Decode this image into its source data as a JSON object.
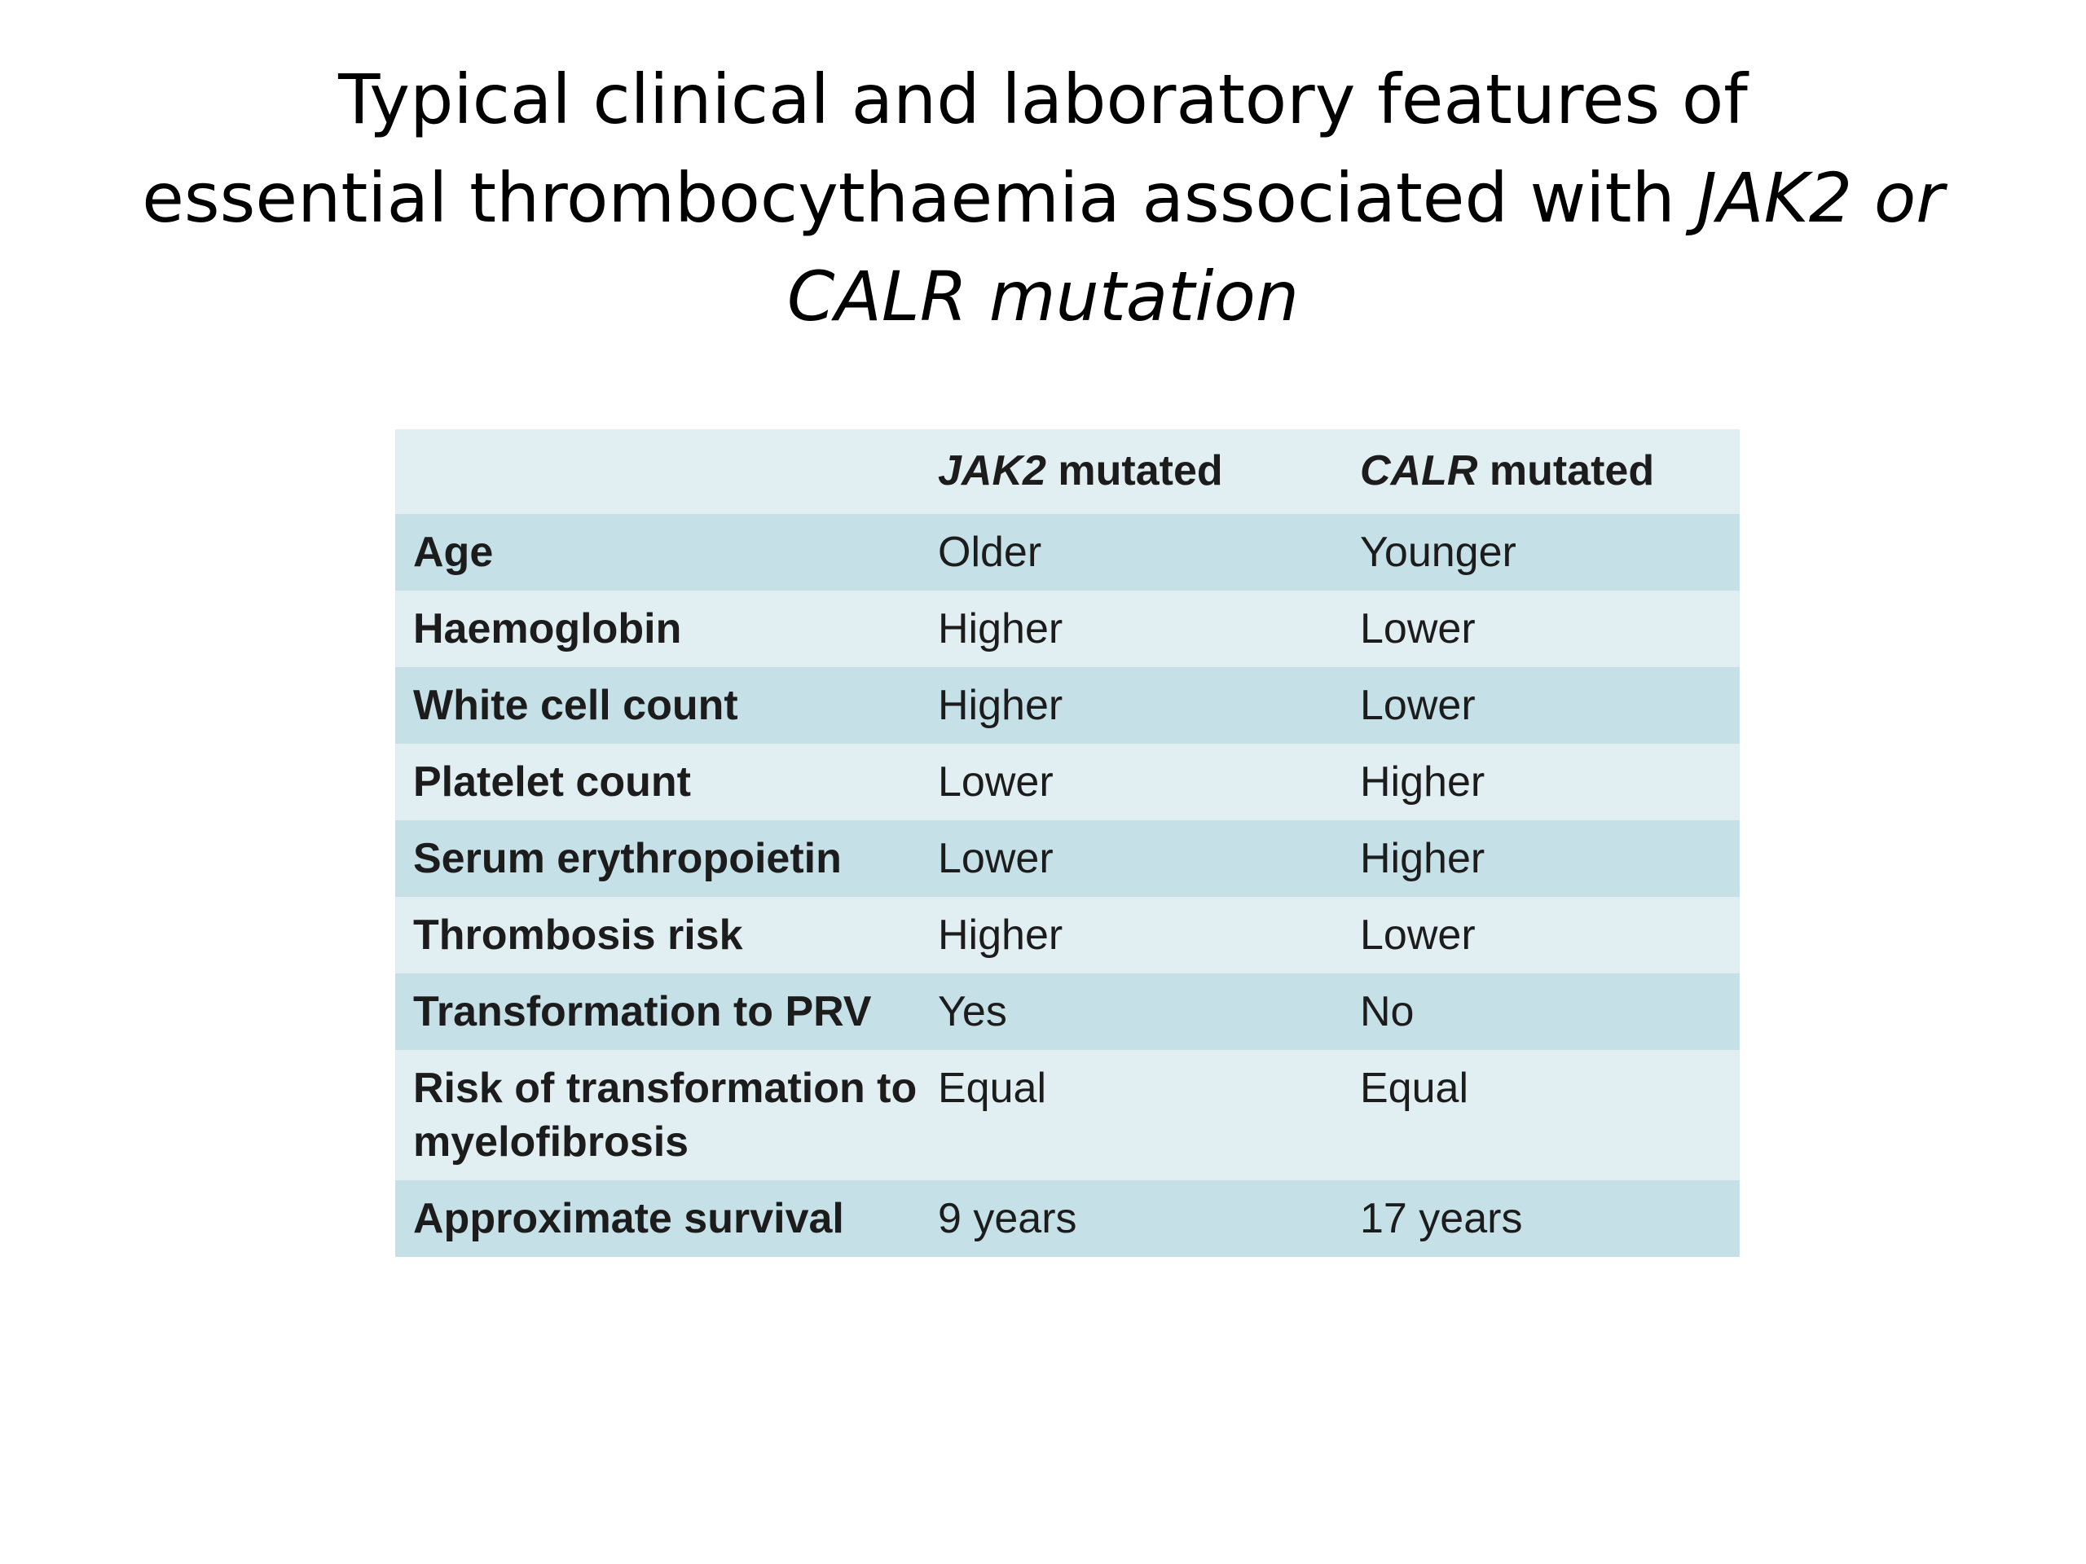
{
  "title": {
    "line1": "Typical clinical and laboratory features of",
    "line2_plain": "essential thrombocythaemia associated with ",
    "line2_italic": "JAK2 or",
    "line3_italic": "CALR mutation"
  },
  "table": {
    "headers": {
      "col1": "",
      "col2_gene": "JAK2",
      "col2_rest": " mutated",
      "col3_gene": "CALR",
      "col3_rest": " mutated"
    },
    "rows": [
      {
        "feature": "Age",
        "jak2": "Older",
        "calr": "Younger"
      },
      {
        "feature": "Haemoglobin",
        "jak2": "Higher",
        "calr": "Lower"
      },
      {
        "feature": "White cell count",
        "jak2": "Higher",
        "calr": "Lower"
      },
      {
        "feature": "Platelet count",
        "jak2": "Lower",
        "calr": "Higher"
      },
      {
        "feature": "Serum erythropoietin",
        "jak2": "Lower",
        "calr": "Higher"
      },
      {
        "feature": "Thrombosis risk",
        "jak2": "Higher",
        "calr": "Lower"
      },
      {
        "feature": "Transformation to PRV",
        "jak2": "Yes",
        "calr": "No"
      },
      {
        "feature": "Risk of transformation to myelofibrosis",
        "jak2": "Equal",
        "calr": "Equal"
      },
      {
        "feature": "Approximate survival",
        "jak2": "9 years",
        "calr": "17 years"
      }
    ]
  },
  "colors": {
    "row_light": "#e2eff2",
    "row_dark": "#c5e0e6",
    "text": "#1c1c1c"
  }
}
